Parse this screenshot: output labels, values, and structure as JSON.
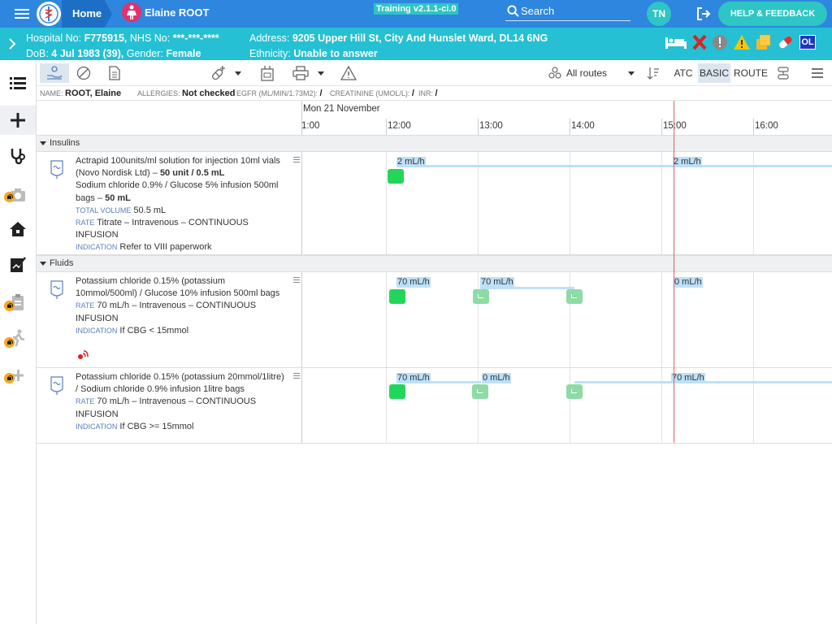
{
  "header": {
    "home_label": "Home",
    "patient_name": "Elaine ROOT",
    "training_badge": "Training v2.1.1-ci.0",
    "search_label": "Search",
    "user_initials": "TN",
    "help_label": "HELP & FEEDBACK"
  },
  "banner": {
    "hospital_no_label": "Hospital No:",
    "hospital_no": "F775915,",
    "nhs_label": "NHS No:",
    "nhs_no": "***-***-****",
    "dob_label": "DoB:",
    "dob": "4 Jul 1983 (39),",
    "gender_label": "Gender:",
    "gender": "Female",
    "address_label": "Address:",
    "address": "9205 Upper Hill St, City And Hunslet Ward, DL14 6NG",
    "ethnicity_label": "Ethnicity:",
    "ethnicity": "Unable to answer",
    "ol_badge": "OL"
  },
  "toolbar": {
    "routes_label": "All routes",
    "atc_label": "ATC",
    "basic_label": "BASIC",
    "route_label": "ROUTE"
  },
  "info": {
    "name_key": "NAME:",
    "name_val": "ROOT, Elaine",
    "allergies_key": "ALLERGIES:",
    "allergies_val": "Not checked",
    "egfr_key": "EGFR (ML/MIN/1.73M2):",
    "egfr_val": "/",
    "creat_key": "CREATININE (UMOL/L):",
    "creat_val": "/",
    "inr_key": "INR:",
    "inr_val": "/"
  },
  "timeline": {
    "date": "Mon 21 November",
    "hours": [
      "1:00",
      "12:00",
      "13:00",
      "14:00",
      "15:00",
      "16:00"
    ]
  },
  "groups": {
    "insulins": "Insulins",
    "fluids": "Fluids"
  },
  "rows": {
    "actrapid": {
      "line1": "Actrapid 100units/ml solution for injection 10ml vials (Novo Nordisk Ltd) –",
      "dose1": "50 unit / 0.5 mL",
      "line2": "Sodium chloride 0.9% / Glucose 5% infusion 500ml bags –",
      "dose2": "50 mL",
      "total_label": "TOTAL VOLUME",
      "total_val": "50.5 mL",
      "rate_label": "RATE",
      "rate_val": "Titrate – Intravenous – CONTINUOUS INFUSION",
      "indication_label": "INDICATION",
      "indication_val": "Refer to VIII paperwork",
      "rates": [
        "2 mL/h",
        "2 mL/h"
      ]
    },
    "kcl10": {
      "line1": "Potassium chloride 0.15% (potassium 10mmol/500ml) / Glucose 10% infusion 500ml bags",
      "rate_label": "RATE",
      "rate_val": "70 mL/h – Intravenous – CONTINUOUS INFUSION",
      "indication_label": "INDICATION",
      "indication_val": "If CBG < 15mmol",
      "rates": [
        "70 mL/h",
        "70 mL/h",
        "0 mL/h"
      ]
    },
    "kcl20": {
      "line1": "Potassium chloride 0.15% (potassium 20mmol/1litre) / Sodium chloride 0.9% infusion 1litre bags",
      "rate_label": "RATE",
      "rate_val": "70 mL/h – Intravenous – CONTINUOUS INFUSION",
      "indication_label": "INDICATION",
      "indication_val": "If CBG >= 15mmol",
      "rates": [
        "70 mL/h",
        "0 mL/h",
        "70 mL/h"
      ]
    }
  },
  "colors": {
    "topbar": "#2e86de",
    "banner": "#25c0d4",
    "marker_given": "#22d65a",
    "marker_changed": "#8edba6",
    "rate_bar": "#bde0f7",
    "now_line": "#e06060"
  }
}
